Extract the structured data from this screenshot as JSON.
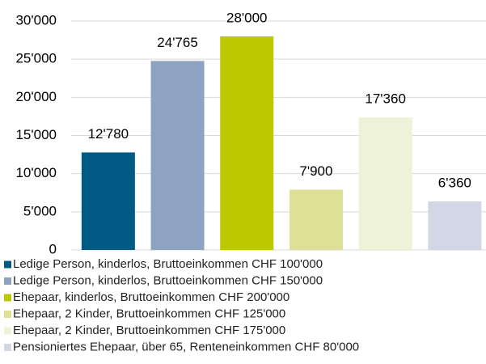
{
  "chart_data": {
    "type": "bar",
    "ylim": [
      0,
      30000
    ],
    "yticks": [
      0,
      {
        "value": 5000,
        "label": "5'000"
      },
      {
        "value": 10000,
        "label": "10'000"
      },
      {
        "value": 15000,
        "label": "15'000"
      },
      {
        "value": 20000,
        "label": "20'000"
      },
      {
        "value": 25000,
        "label": "25'000"
      },
      {
        "value": 30000,
        "label": "30'000"
      }
    ],
    "grid": true,
    "legend": "bottom",
    "series": [
      {
        "name": "Ledige Person, kinderlos, Bruttoeinkommen CHF 100'000",
        "color": "#005a84",
        "values": [
          12780
        ],
        "value_labels": [
          "12'780"
        ]
      },
      {
        "name": "Ledige Person, kinderlos, Bruttoeinkommen CHF 150'000",
        "color": "#8ea2c1",
        "values": [
          24765
        ],
        "value_labels": [
          "24'765"
        ]
      },
      {
        "name": "Ehepaar, kinderlos, Bruttoeinkommen CHF 200'000",
        "color": "#bdc900",
        "values": [
          28000
        ],
        "value_labels": [
          "28'000"
        ]
      },
      {
        "name": "Ehepaar, 2 Kinder, Bruttoeinkommen CHF 125'000",
        "color": "#dde096",
        "values": [
          7900
        ],
        "value_labels": [
          "7'900"
        ]
      },
      {
        "name": "Ehepaar, 2 Kinder, Bruttoeinkommen CHF 175'000",
        "color": "#eef2d6",
        "values": [
          17360
        ],
        "value_labels": [
          "17'360"
        ]
      },
      {
        "name": "Pensioniertes Ehepaar, über 65, Renteneinkommen CHF 80'000",
        "color": "#d2d7e5",
        "values": [
          6360
        ],
        "value_labels": [
          "6'360"
        ]
      }
    ]
  }
}
